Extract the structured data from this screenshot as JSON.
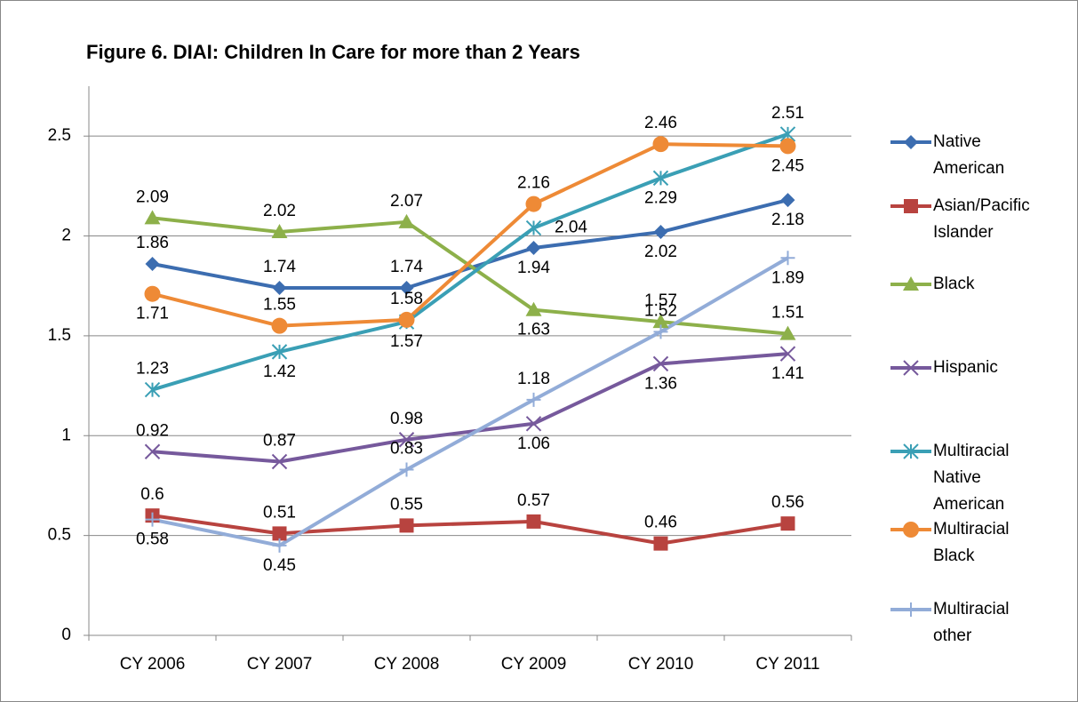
{
  "chart_data": {
    "type": "line",
    "title": "Figure 6. DIAI: Children In Care for more than 2 Years",
    "categories": [
      "CY 2006",
      "CY 2007",
      "CY 2008",
      "CY 2009",
      "CY 2010",
      "CY 2011"
    ],
    "ylim": [
      0,
      2.75
    ],
    "yticks": [
      0,
      0.5,
      1,
      1.5,
      2,
      2.5
    ],
    "grid": true,
    "legend": "right",
    "series": [
      {
        "name": "Native American",
        "color": "#3c6db0",
        "marker": "diamond",
        "values": [
          1.86,
          1.74,
          1.74,
          1.94,
          2.02,
          2.18
        ]
      },
      {
        "name": "Asian/Pacific Islander",
        "color": "#b8433f",
        "marker": "square",
        "values": [
          0.6,
          0.51,
          0.55,
          0.57,
          0.46,
          0.56
        ]
      },
      {
        "name": "Black",
        "color": "#8db04a",
        "marker": "triangle",
        "values": [
          2.09,
          2.02,
          2.07,
          1.63,
          1.57,
          1.51
        ]
      },
      {
        "name": "Hispanic",
        "color": "#76599c",
        "marker": "x",
        "values": [
          0.92,
          0.87,
          0.98,
          1.06,
          1.36,
          1.41
        ]
      },
      {
        "name": "Multiracial Native American",
        "color": "#3a9fb5",
        "marker": "star",
        "values": [
          1.23,
          1.42,
          1.57,
          2.04,
          2.29,
          2.51
        ]
      },
      {
        "name": "Multiracial Black",
        "color": "#ee8a36",
        "marker": "circle",
        "values": [
          1.71,
          1.55,
          1.58,
          2.16,
          2.46,
          2.45
        ]
      },
      {
        "name": "Multiracial other",
        "color": "#92acd8",
        "marker": "plus",
        "values": [
          0.58,
          0.45,
          0.83,
          1.18,
          1.52,
          1.89
        ]
      }
    ]
  }
}
